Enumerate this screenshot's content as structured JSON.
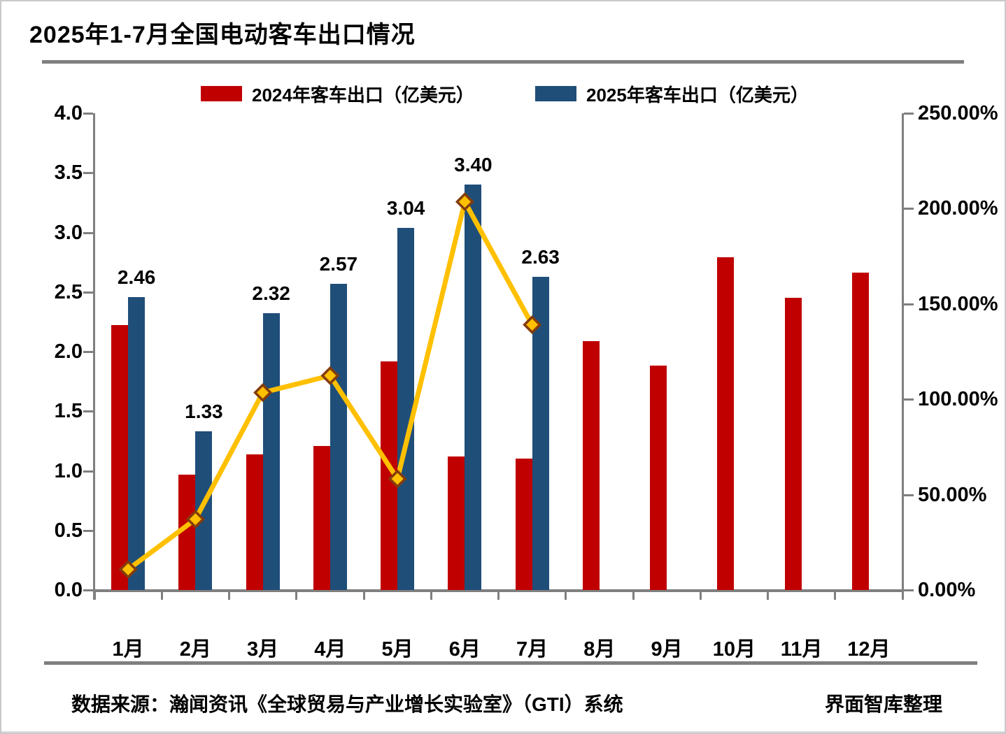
{
  "title": "2025年1-7月全国电动客车出口情况",
  "legend": [
    {
      "label": "2024年客车出口（亿美元）",
      "color": "#C00000"
    },
    {
      "label": "2025年客车出口（亿美元）",
      "color": "#1F4E79"
    }
  ],
  "footer": {
    "source": "数据来源：瀚闻资讯《全球贸易与产业增长实验室》（GTI）系统",
    "credit": "界面智库整理"
  },
  "colors": {
    "bar_2024": "#C00000",
    "bar_2025": "#1F4E79",
    "growth_line": "#FFC000",
    "growth_marker_border": "#843C0C",
    "axis_gray": "#7f7f7f"
  },
  "chart_data": {
    "type": "bar",
    "title": "2025年1-7月全国电动客车出口情况",
    "categories": [
      "1月",
      "2月",
      "3月",
      "4月",
      "5月",
      "6月",
      "7月",
      "8月",
      "9月",
      "10月",
      "11月",
      "12月"
    ],
    "series": [
      {
        "name": "2024年客车出口（亿美元）",
        "type": "bar",
        "color": "#C00000",
        "values": [
          2.22,
          0.97,
          1.14,
          1.21,
          1.92,
          1.12,
          1.1,
          2.09,
          1.88,
          2.79,
          2.45,
          2.66
        ]
      },
      {
        "name": "2025年客车出口（亿美元）",
        "type": "bar",
        "color": "#1F4E79",
        "values": [
          2.46,
          1.33,
          2.32,
          2.57,
          3.04,
          3.4,
          2.63
        ],
        "data_labels": [
          "2.46",
          "1.33",
          "2.32",
          "2.57",
          "3.04",
          "3.40",
          "2.63"
        ]
      },
      {
        "name": "",
        "type": "line",
        "axis": "right",
        "color": "#FFC000",
        "marker": "diamond",
        "marker_border": "#843C0C",
        "values_pct": [
          10.8,
          37.1,
          103.5,
          112.4,
          58.3,
          203.6,
          139.1
        ]
      }
    ],
    "left_axis": {
      "min": 0,
      "max": 4,
      "ticks": [
        "0.0",
        "0.5",
        "1.0",
        "1.5",
        "2.0",
        "2.5",
        "3.0",
        "3.5",
        "4.0"
      ]
    },
    "right_axis": {
      "min": 0,
      "max": 250,
      "ticks": [
        "0.00%",
        "50.00%",
        "100.00%",
        "150.00%",
        "200.00%",
        "250.00%"
      ]
    },
    "grid": false,
    "legend_position": "top"
  }
}
